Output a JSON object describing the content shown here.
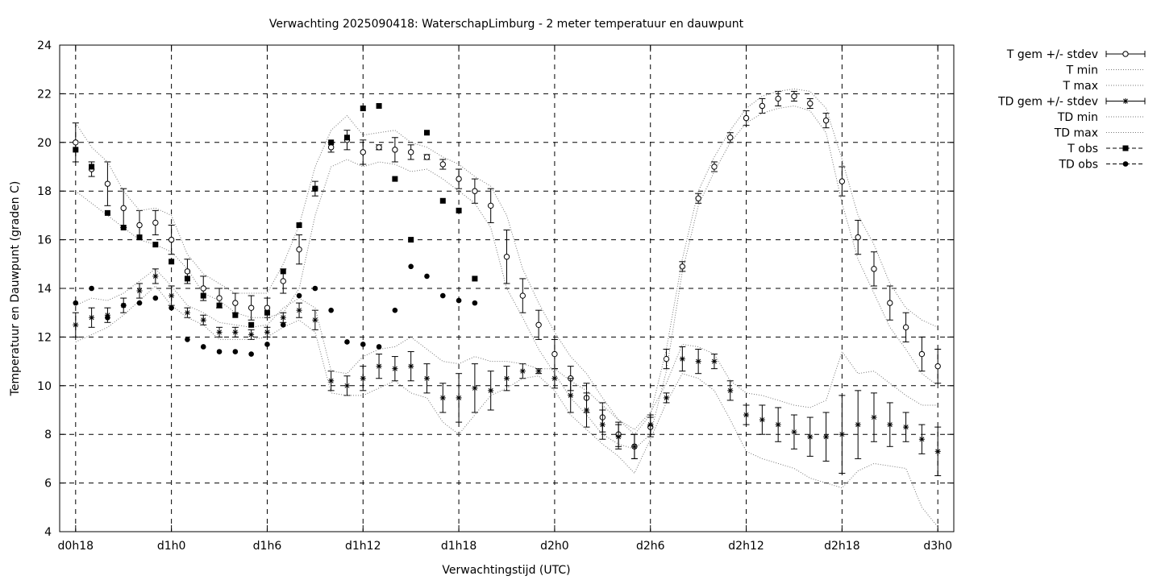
{
  "chart_data": {
    "type": "line",
    "title": "Verwachting 2025090418: WaterschapLimburg - 2 meter temperatuur en dauwpunt",
    "xlabel": "Verwachtingstijd (UTC)",
    "ylabel": "Temperatuur en Dauwpunt (graden C)",
    "xlim": [
      17,
      73
    ],
    "ylim": [
      4,
      24
    ],
    "grid": true,
    "legend_position": "outside-right",
    "x_ticks": [
      {
        "x": 18,
        "label": "d0h18"
      },
      {
        "x": 24,
        "label": "d1h0"
      },
      {
        "x": 30,
        "label": "d1h6"
      },
      {
        "x": 36,
        "label": "d1h12"
      },
      {
        "x": 42,
        "label": "d1h18"
      },
      {
        "x": 48,
        "label": "d2h0"
      },
      {
        "x": 54,
        "label": "d2h6"
      },
      {
        "x": 60,
        "label": "d2h12"
      },
      {
        "x": 66,
        "label": "d2h18"
      },
      {
        "x": 72,
        "label": "d3h0"
      }
    ],
    "y_ticks": [
      {
        "y": 4,
        "label": "4"
      },
      {
        "y": 6,
        "label": "6"
      },
      {
        "y": 8,
        "label": "8"
      },
      {
        "y": 10,
        "label": "10"
      },
      {
        "y": 12,
        "label": "12"
      },
      {
        "y": 14,
        "label": "14"
      },
      {
        "y": 16,
        "label": "16"
      },
      {
        "y": 18,
        "label": "18"
      },
      {
        "y": 20,
        "label": "20"
      },
      {
        "y": 22,
        "label": "22"
      },
      {
        "y": 24,
        "label": "24"
      }
    ],
    "x": [
      18,
      19,
      20,
      21,
      22,
      23,
      24,
      25,
      26,
      27,
      28,
      29,
      30,
      31,
      32,
      33,
      34,
      35,
      36,
      37,
      38,
      39,
      40,
      41,
      42,
      43,
      44,
      45,
      46,
      47,
      48,
      49,
      50,
      51,
      52,
      53,
      54,
      55,
      56,
      57,
      58,
      59,
      60,
      61,
      62,
      63,
      64,
      65,
      66,
      67,
      68,
      69,
      70,
      71,
      72
    ],
    "series": [
      {
        "name": "T gem +/- stdev",
        "marker": "open-circle",
        "values": [
          20.0,
          18.9,
          18.3,
          17.3,
          16.6,
          16.7,
          16.0,
          14.7,
          14.0,
          13.6,
          13.4,
          13.2,
          13.2,
          14.3,
          15.6,
          18.1,
          19.8,
          20.1,
          19.6,
          19.8,
          19.7,
          19.6,
          19.4,
          19.1,
          18.5,
          18.0,
          17.4,
          15.3,
          13.7,
          12.5,
          11.3,
          10.3,
          9.5,
          8.7,
          8.0,
          7.5,
          8.3,
          11.1,
          14.9,
          17.7,
          19.0,
          20.2,
          21.0,
          21.5,
          21.8,
          21.9,
          21.6,
          20.9,
          18.4,
          16.1,
          14.8,
          13.4,
          12.4,
          11.3,
          10.8
        ],
        "stdev": [
          0.8,
          0.3,
          0.9,
          0.8,
          0.6,
          0.5,
          0.6,
          0.5,
          0.5,
          0.4,
          0.4,
          0.5,
          0.4,
          0.5,
          0.6,
          0.3,
          0.2,
          0.4,
          0.5,
          0.1,
          0.5,
          0.3,
          0.1,
          0.2,
          0.4,
          0.5,
          0.7,
          1.1,
          0.7,
          0.6,
          0.6,
          0.5,
          0.6,
          0.6,
          0.5,
          0.5,
          0.4,
          0.4,
          0.2,
          0.2,
          0.2,
          0.2,
          0.3,
          0.3,
          0.3,
          0.2,
          0.2,
          0.3,
          0.6,
          0.7,
          0.7,
          0.7,
          0.6,
          0.7,
          0.7
        ]
      },
      {
        "name": "T min",
        "style": "dotted",
        "values": [
          18.0,
          17.5,
          17.0,
          16.5,
          16.0,
          15.8,
          15.5,
          14.8,
          13.8,
          13.5,
          13.0,
          12.8,
          12.8,
          13.0,
          14.0,
          17.0,
          19.0,
          19.3,
          19.0,
          19.2,
          19.1,
          18.8,
          18.9,
          18.5,
          18.0,
          17.5,
          16.5,
          14.0,
          12.8,
          11.5,
          10.5,
          9.5,
          8.8,
          8.0,
          7.6,
          7.4,
          8.0,
          10.6,
          14.7,
          17.4,
          18.8,
          20.0,
          20.8,
          21.2,
          21.4,
          21.5,
          21.3,
          20.4,
          17.5,
          15.2,
          13.8,
          12.4,
          11.5,
          10.5,
          10.0
        ]
      },
      {
        "name": "T max",
        "style": "dotted",
        "values": [
          20.8,
          19.8,
          19.2,
          18.0,
          17.2,
          17.3,
          17.0,
          15.4,
          14.6,
          14.2,
          13.8,
          13.8,
          13.8,
          15.0,
          16.6,
          19.0,
          20.5,
          21.1,
          20.3,
          20.4,
          20.5,
          20.0,
          19.8,
          19.4,
          19.1,
          18.6,
          18.2,
          17.0,
          14.8,
          13.4,
          12.2,
          11.2,
          10.5,
          9.5,
          8.6,
          8.0,
          8.8,
          11.5,
          15.2,
          18.0,
          19.4,
          20.5,
          21.4,
          21.9,
          22.1,
          22.2,
          22.1,
          21.4,
          19.3,
          17.0,
          15.8,
          14.2,
          13.2,
          12.7,
          12.4
        ]
      },
      {
        "name": "TD gem +/- stdev",
        "marker": "asterisk",
        "values": [
          12.5,
          12.8,
          12.9,
          13.3,
          13.9,
          14.5,
          13.7,
          13.0,
          12.7,
          12.2,
          12.2,
          12.1,
          12.2,
          12.8,
          13.1,
          12.7,
          10.2,
          10.0,
          10.3,
          10.8,
          10.7,
          10.8,
          10.3,
          9.5,
          9.5,
          9.9,
          9.8,
          10.3,
          10.6,
          10.6,
          10.3,
          9.6,
          9.0,
          8.4,
          7.9,
          7.5,
          8.4,
          9.5,
          11.1,
          11.0,
          11.0,
          9.8,
          8.8,
          8.6,
          8.4,
          8.1,
          7.9,
          7.9,
          8.0,
          8.4,
          8.7,
          8.4,
          8.3,
          7.8,
          7.3
        ],
        "stdev": [
          0.5,
          0.4,
          0.3,
          0.3,
          0.3,
          0.3,
          0.4,
          0.2,
          0.2,
          0.2,
          0.2,
          0.2,
          0.2,
          0.2,
          0.3,
          0.4,
          0.4,
          0.4,
          0.5,
          0.5,
          0.5,
          0.6,
          0.6,
          0.6,
          1.0,
          1.0,
          0.8,
          0.5,
          0.3,
          0.1,
          0.4,
          0.7,
          0.7,
          0.6,
          0.5,
          0.5,
          0.4,
          0.2,
          0.5,
          0.5,
          0.3,
          0.4,
          0.4,
          0.6,
          0.7,
          0.7,
          0.8,
          1.0,
          1.6,
          1.4,
          1.0,
          0.9,
          0.6,
          0.6,
          1.0
        ]
      },
      {
        "name": "TD min",
        "style": "dotted",
        "values": [
          11.8,
          12.1,
          12.4,
          12.9,
          13.5,
          14.1,
          13.3,
          12.8,
          12.5,
          11.9,
          11.9,
          11.9,
          12.0,
          12.4,
          12.7,
          12.2,
          9.7,
          9.6,
          9.6,
          9.9,
          10.2,
          9.7,
          9.5,
          8.5,
          8.0,
          8.8,
          9.6,
          9.9,
          10.3,
          10.4,
          9.8,
          8.8,
          8.2,
          7.6,
          7.1,
          6.4,
          7.8,
          9.3,
          10.5,
          10.3,
          9.8,
          8.6,
          7.3,
          7.0,
          6.8,
          6.6,
          6.2,
          6.0,
          5.8,
          6.5,
          6.8,
          6.7,
          6.6,
          5.0,
          4.2
        ]
      },
      {
        "name": "TD max",
        "style": "dotted",
        "values": [
          13.3,
          13.6,
          13.5,
          13.8,
          14.3,
          14.8,
          14.1,
          13.3,
          13.0,
          12.6,
          12.5,
          12.4,
          12.5,
          13.2,
          13.6,
          13.2,
          10.6,
          10.5,
          11.2,
          11.5,
          11.6,
          12.0,
          11.5,
          11.0,
          10.9,
          11.2,
          11.0,
          11.0,
          10.9,
          10.7,
          10.7,
          10.2,
          9.8,
          9.2,
          8.6,
          8.2,
          8.9,
          10.1,
          11.7,
          11.6,
          11.3,
          10.2,
          9.7,
          9.6,
          9.4,
          9.2,
          9.1,
          9.4,
          11.4,
          10.5,
          10.6,
          10.1,
          9.6,
          9.2,
          9.2
        ]
      },
      {
        "name": "T obs",
        "marker": "filled-square",
        "x": [
          18,
          19,
          20,
          21,
          22,
          23,
          24,
          25,
          26,
          27,
          28,
          29,
          30,
          31,
          32,
          33,
          34,
          35,
          36,
          37,
          38,
          39,
          40,
          41,
          42,
          43
        ],
        "values": [
          19.7,
          19.0,
          17.1,
          16.5,
          16.1,
          15.8,
          15.1,
          14.4,
          13.7,
          13.3,
          12.9,
          12.5,
          13.0,
          14.7,
          16.6,
          18.1,
          20.0,
          20.2,
          21.4,
          21.5,
          18.5,
          16.0,
          20.4,
          17.6,
          17.2,
          14.4
        ]
      },
      {
        "name": "TD obs",
        "marker": "filled-circle",
        "x": [
          18,
          19,
          20,
          21,
          22,
          23,
          24,
          25,
          26,
          27,
          28,
          29,
          30,
          31,
          32,
          33,
          34,
          35,
          36,
          37,
          38,
          39,
          40,
          41,
          42,
          43
        ],
        "values": [
          13.4,
          14.0,
          12.8,
          13.3,
          13.4,
          13.6,
          13.2,
          11.9,
          11.6,
          11.4,
          11.4,
          11.3,
          11.7,
          12.5,
          13.7,
          14.0,
          13.1,
          11.8,
          11.7,
          11.6,
          13.1,
          14.9,
          14.5,
          13.7,
          13.5,
          13.4
        ]
      }
    ]
  }
}
